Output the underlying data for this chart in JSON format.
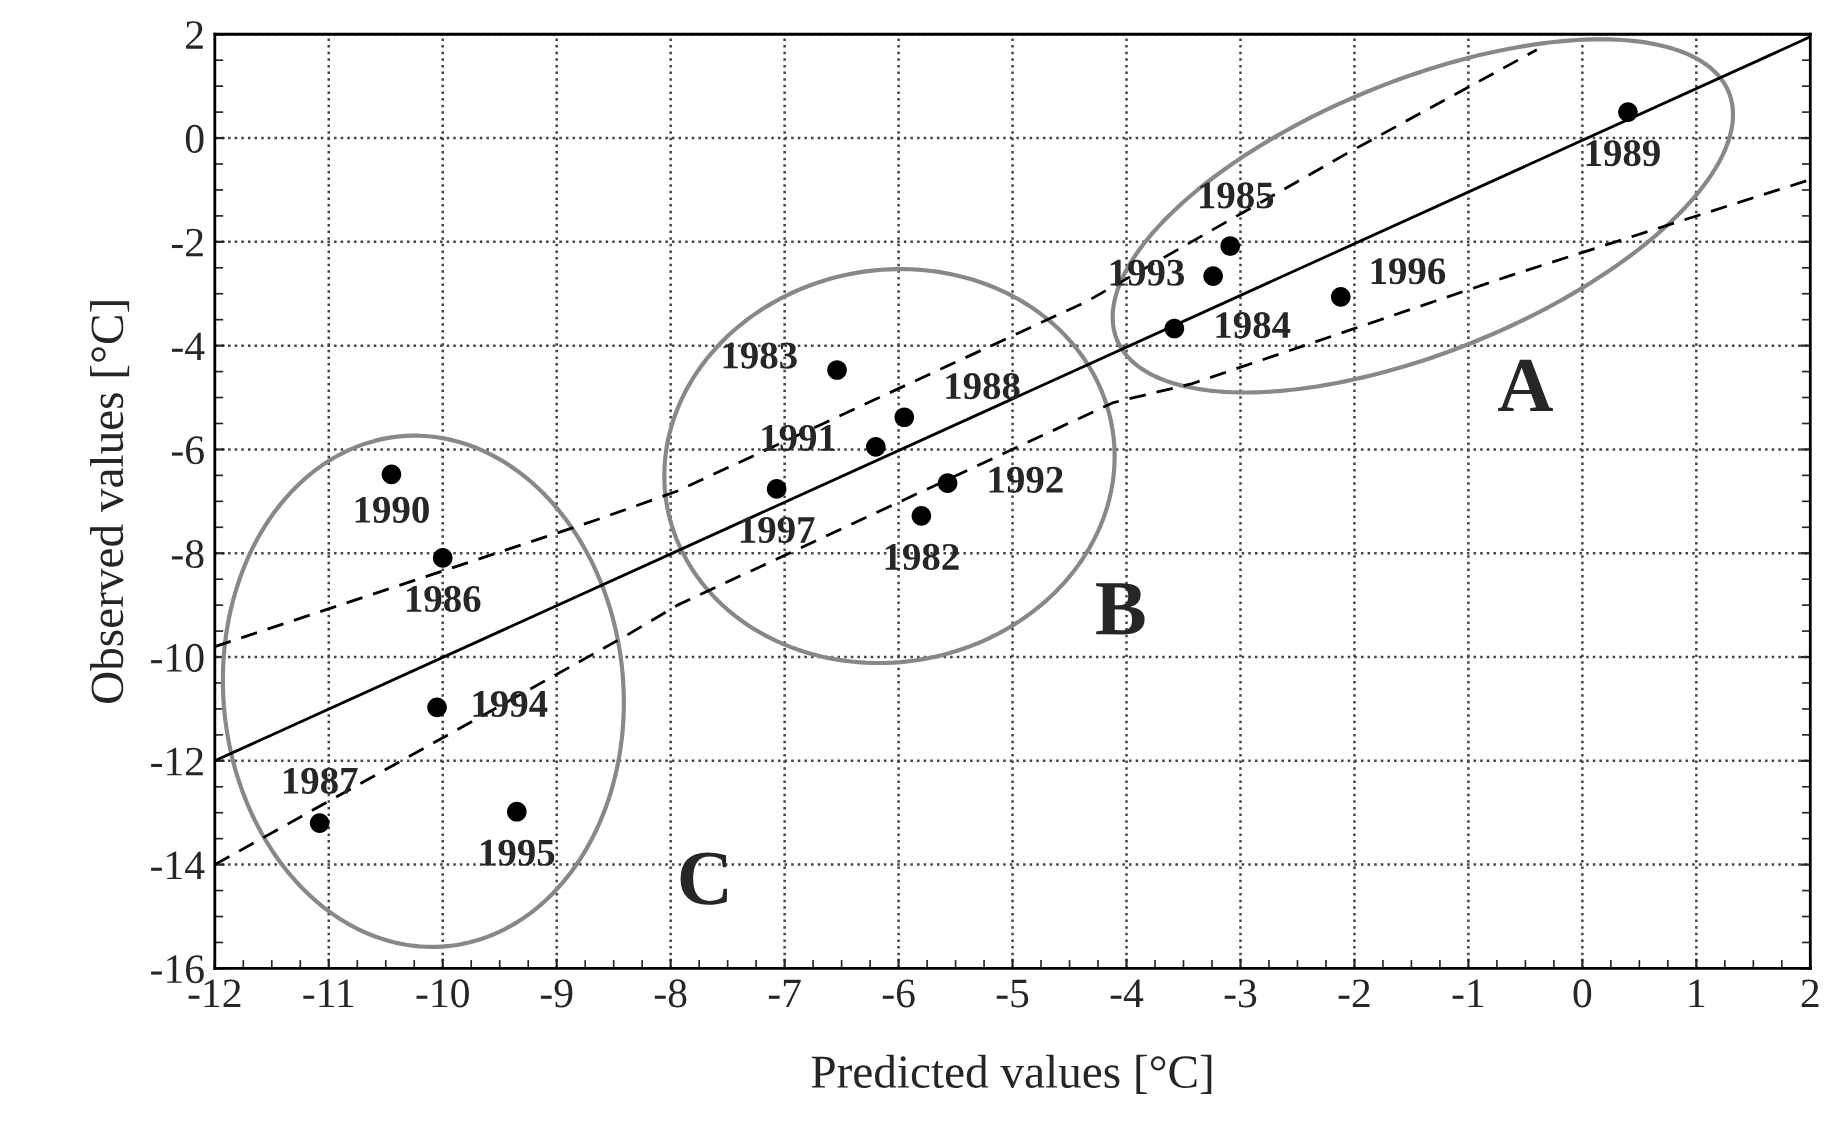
{
  "chart_data": {
    "type": "scatter",
    "xlabel": "Predicted values [°C]",
    "ylabel": "Observed values [°C]",
    "xlim": [
      -12,
      2
    ],
    "ylim": [
      -16,
      2
    ],
    "xticks": [
      -12,
      -11,
      -10,
      -9,
      -8,
      -7,
      -6,
      -5,
      -4,
      -3,
      -2,
      -1,
      0,
      1,
      2
    ],
    "yticks": [
      -16,
      -14,
      -12,
      -10,
      -8,
      -6,
      -4,
      -2,
      0,
      2
    ],
    "grid": true,
    "marker": "circle",
    "series": [
      {
        "name": "1989",
        "color": "#000000",
        "x": [
          0.4
        ],
        "values": [
          0.5
        ]
      },
      {
        "name": "1985",
        "color": "#000000",
        "x": [
          -3.09
        ],
        "values": [
          -2.08
        ]
      },
      {
        "name": "1993",
        "color": "#000000",
        "x": [
          -3.24
        ],
        "values": [
          -2.66
        ]
      },
      {
        "name": "1984",
        "color": "#000000",
        "x": [
          -3.58
        ],
        "values": [
          -3.67
        ]
      },
      {
        "name": "1996",
        "color": "#000000",
        "x": [
          -2.12
        ],
        "values": [
          -3.06
        ]
      },
      {
        "name": "1983",
        "color": "#000000",
        "x": [
          -6.54
        ],
        "values": [
          -4.47
        ]
      },
      {
        "name": "1988",
        "color": "#000000",
        "x": [
          -5.95
        ],
        "values": [
          -5.38
        ]
      },
      {
        "name": "1991",
        "color": "#000000",
        "x": [
          -6.2
        ],
        "values": [
          -5.95
        ]
      },
      {
        "name": "1997",
        "color": "#000000",
        "x": [
          -7.07
        ],
        "values": [
          -6.76
        ]
      },
      {
        "name": "1992",
        "color": "#000000",
        "x": [
          -5.57
        ],
        "values": [
          -6.65
        ]
      },
      {
        "name": "1982",
        "color": "#000000",
        "x": [
          -5.8
        ],
        "values": [
          -7.28
        ]
      },
      {
        "name": "1990",
        "color": "#000000",
        "x": [
          -10.45
        ],
        "values": [
          -6.48
        ]
      },
      {
        "name": "1986",
        "color": "#000000",
        "x": [
          -10.0
        ],
        "values": [
          -8.09
        ]
      },
      {
        "name": "1994",
        "color": "#000000",
        "x": [
          -10.05
        ],
        "values": [
          -10.97
        ]
      },
      {
        "name": "1987",
        "color": "#000000",
        "x": [
          -11.08
        ],
        "values": [
          -13.2
        ]
      },
      {
        "name": "1995",
        "color": "#000000",
        "x": [
          -9.35
        ],
        "values": [
          -12.98
        ]
      },
      {
        "type": "line",
        "color": "#000000",
        "line_style": "solid",
        "marker": "none",
        "x": [
          -12,
          2
        ],
        "values": [
          -12,
          1.95
        ]
      },
      {
        "type": "line",
        "color": "#000000",
        "line_style": "dashed",
        "marker": "none",
        "x": [
          -12,
          -8.64,
          -7.94,
          -4.35,
          -2.07,
          -0.4
        ],
        "values": [
          -9.8,
          -7.35,
          -6.8,
          -3.15,
          -0.3,
          1.7
        ]
      },
      {
        "type": "line",
        "color": "#000000",
        "line_style": "dashed",
        "marker": "none",
        "x": [
          -12,
          -8.4,
          -7.94,
          -4.12,
          -3.42,
          -0.62,
          2
        ],
        "values": [
          -14,
          -9.6,
          -9.0,
          -5.1,
          -4.73,
          -2.64,
          -0.8
        ]
      }
    ],
    "annotations": [
      "A",
      "B",
      "C"
    ]
  }
}
